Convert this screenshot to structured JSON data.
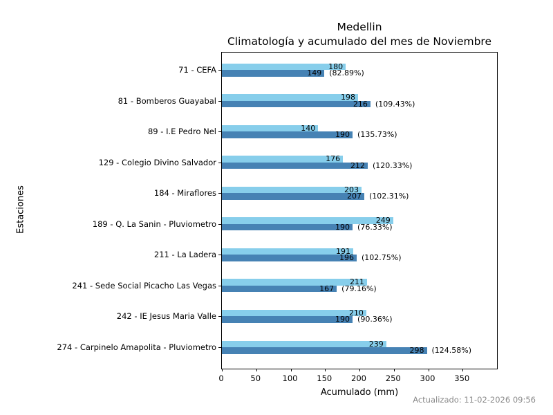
{
  "figure": {
    "title_line1": "Medellin",
    "title_line2": "Climatología y acumulado del mes de Noviembre",
    "xlabel": "Acumulado (mm)",
    "ylabel": "Estaciones",
    "footer": "Actualizado: 11-02-2026 09:56"
  },
  "chart_data": {
    "type": "bar",
    "orientation": "horizontal",
    "title": "Medellin — Climatología y acumulado del mes de Noviembre",
    "xlabel": "Acumulado (mm)",
    "ylabel": "Estaciones",
    "xlim": [
      0,
      400
    ],
    "xticks": [
      0,
      50,
      100,
      150,
      200,
      250,
      300,
      350
    ],
    "grid": false,
    "legend": "none",
    "colors": {
      "top_bar_light_blue": "#87CEEB",
      "bottom_bar_dark_blue": "#4682B4"
    },
    "categories": [
      "71 - CEFA",
      "81 - Bomberos Guayabal",
      "89 - I.E Pedro Nel",
      "129 - Colegio Divino Salvador",
      "184 - Miraflores",
      "189 - Q. La Sanin - Pluviometro",
      "211 - La Ladera",
      "241 - Sede Social Picacho Las Vegas",
      "242 - IE Jesus Maria Valle",
      "274 - Carpinelo Amapolita - Pluviometro"
    ],
    "series": [
      {
        "name": "top-light-blue-bar",
        "values": [
          180,
          198,
          140,
          176,
          203,
          249,
          191,
          211,
          210,
          239
        ]
      },
      {
        "name": "bottom-dark-blue-bar",
        "values": [
          149,
          216,
          190,
          212,
          207,
          190,
          196,
          167,
          190,
          298
        ]
      }
    ],
    "percent_labels": [
      "(82.89%)",
      "(109.43%)",
      "(135.73%)",
      "(120.33%)",
      "(102.31%)",
      "(76.33%)",
      "(102.75%)",
      "(79.16%)",
      "(90.36%)",
      "(124.58%)"
    ]
  }
}
